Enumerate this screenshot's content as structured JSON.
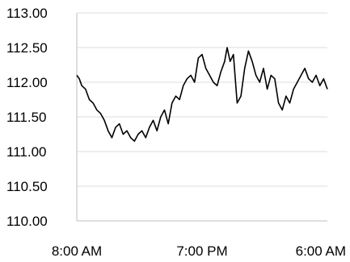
{
  "chart_data": {
    "type": "line",
    "title": "",
    "xlabel": "",
    "ylabel": "",
    "ylim": [
      110.0,
      113.0
    ],
    "y_ticks": [
      "113.00",
      "112.50",
      "112.00",
      "111.50",
      "111.00",
      "110.50",
      "110.00"
    ],
    "x_ticks": [
      {
        "label": "8:00 AM",
        "pos": 0.0
      },
      {
        "label": "7:00 PM",
        "pos": 0.5
      },
      {
        "label": "6:00 AM",
        "pos": 1.0
      }
    ],
    "grid": "horizontal",
    "line_color": "#000000",
    "grid_color": "#dddddd",
    "axis_color": "#bfbfbf",
    "series": [
      {
        "x": [
          0.0,
          0.01,
          0.02,
          0.035,
          0.05,
          0.065,
          0.08,
          0.095,
          0.11,
          0.125,
          0.14,
          0.155,
          0.17,
          0.185,
          0.2,
          0.215,
          0.23,
          0.245,
          0.26,
          0.275,
          0.29,
          0.305,
          0.32,
          0.335,
          0.35,
          0.365,
          0.38,
          0.395,
          0.41,
          0.425,
          0.44,
          0.455,
          0.47,
          0.485,
          0.5,
          0.515,
          0.53,
          0.545,
          0.56,
          0.575,
          0.59,
          0.6,
          0.612,
          0.625,
          0.64,
          0.655,
          0.67,
          0.685,
          0.7,
          0.715,
          0.73,
          0.745,
          0.76,
          0.775,
          0.79,
          0.805,
          0.82,
          0.835,
          0.85,
          0.865,
          0.88,
          0.895,
          0.91,
          0.925,
          0.94,
          0.955,
          0.97,
          0.985,
          1.0
        ],
        "y": [
          112.1,
          112.05,
          111.95,
          111.9,
          111.75,
          111.7,
          111.6,
          111.55,
          111.45,
          111.3,
          111.2,
          111.35,
          111.4,
          111.25,
          111.3,
          111.2,
          111.15,
          111.25,
          111.3,
          111.2,
          111.35,
          111.45,
          111.3,
          111.5,
          111.6,
          111.4,
          111.7,
          111.8,
          111.75,
          111.95,
          112.05,
          112.1,
          112.0,
          112.35,
          112.4,
          112.2,
          112.1,
          112.0,
          111.95,
          112.15,
          112.3,
          112.5,
          112.3,
          112.4,
          111.7,
          111.8,
          112.2,
          112.45,
          112.3,
          112.1,
          112.0,
          112.2,
          111.9,
          112.1,
          112.05,
          111.7,
          111.6,
          111.8,
          111.7,
          111.9,
          112.0,
          112.1,
          112.2,
          112.05,
          112.0,
          112.1,
          111.95,
          112.05,
          111.9
        ]
      }
    ]
  }
}
